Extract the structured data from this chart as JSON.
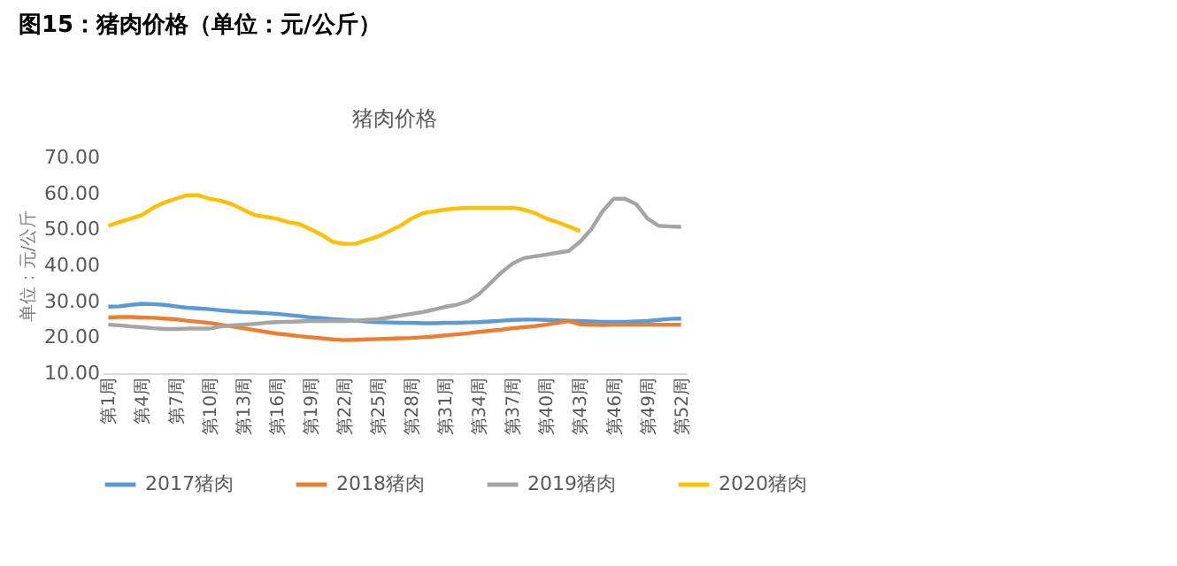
{
  "chart_data": {
    "type": "line",
    "title": "图15：猪肉价格（单位：元/公斤）",
    "subtitle": "猪肉价格",
    "ylabel": "单位：元/公斤",
    "categories": [
      "第1周",
      null,
      null,
      "第4周",
      null,
      null,
      "第7周",
      null,
      null,
      "第10周",
      null,
      null,
      "第13周",
      null,
      null,
      "第16周",
      null,
      null,
      "第19周",
      null,
      null,
      "第22周",
      null,
      null,
      "第25周",
      null,
      null,
      "第28周",
      null,
      null,
      "第31周",
      null,
      null,
      "第34周",
      null,
      null,
      "第37周",
      null,
      null,
      "第40周",
      null,
      null,
      "第43周",
      null,
      null,
      "第46周",
      null,
      null,
      "第49周",
      null,
      null,
      "第52周"
    ],
    "series": [
      {
        "name": "2017猪肉",
        "color": "#5b9bd5",
        "values": [
          28.5,
          28.6,
          29,
          29.3,
          29.2,
          29,
          28.6,
          28.2,
          28,
          27.8,
          27.5,
          27.2,
          27,
          26.9,
          26.7,
          26.5,
          26.2,
          25.9,
          25.5,
          25.3,
          25,
          24.8,
          24.6,
          24.4,
          24.2,
          24.1,
          24,
          24,
          23.9,
          23.9,
          24,
          24,
          24.1,
          24.2,
          24.4,
          24.6,
          24.8,
          24.9,
          24.9,
          24.8,
          24.7,
          24.6,
          24.5,
          24.4,
          24.3,
          24.3,
          24.3,
          24.4,
          24.5,
          24.8,
          25.1,
          25.2
        ]
      },
      {
        "name": "2018猪肉",
        "color": "#ed7d31",
        "values": [
          25.5,
          25.6,
          25.6,
          25.5,
          25.4,
          25.2,
          25,
          24.6,
          24.3,
          24,
          23.5,
          23,
          22.5,
          22,
          21.5,
          21,
          20.7,
          20.3,
          20,
          19.7,
          19.4,
          19.2,
          19.3,
          19.4,
          19.5,
          19.6,
          19.7,
          19.8,
          20,
          20.2,
          20.5,
          20.8,
          21.1,
          21.5,
          21.8,
          22.1,
          22.5,
          22.8,
          23.1,
          23.5,
          24,
          24.5,
          23.6,
          23.5,
          23.4,
          23.5,
          23.5,
          23.5,
          23.5,
          23.5,
          23.5,
          23.5
        ]
      },
      {
        "name": "2019猪肉",
        "color": "#a5a5a5",
        "values": [
          23.5,
          23.3,
          23,
          22.8,
          22.5,
          22.3,
          22.3,
          22.4,
          22.4,
          22.4,
          23,
          23.3,
          23.5,
          23.7,
          24,
          24.2,
          24.3,
          24.4,
          24.5,
          24.5,
          24.5,
          24.5,
          24.6,
          24.8,
          25,
          25.5,
          26,
          26.5,
          27,
          27.7,
          28.5,
          29,
          30,
          32,
          35,
          38,
          40.5,
          42,
          42.5,
          43,
          43.5,
          44,
          46.5,
          50,
          55,
          58.5,
          58.5,
          57,
          53,
          51,
          50.8,
          50.7
        ]
      },
      {
        "name": "2020猪肉",
        "color": "#ffc000",
        "values": [
          51,
          52,
          53,
          54,
          56,
          57.5,
          58.5,
          59.5,
          59.5,
          58.5,
          58,
          57,
          55.5,
          54,
          53.5,
          53,
          52,
          51.5,
          50,
          48.5,
          46.5,
          46,
          46,
          47,
          48,
          49.5,
          51,
          53,
          54.5,
          55,
          55.5,
          55.8,
          56,
          56,
          56,
          56,
          56,
          55.5,
          54.5,
          53,
          52,
          50.8,
          49.5,
          null,
          null,
          null,
          null,
          null,
          null,
          null,
          null,
          null
        ]
      }
    ],
    "ylim": [
      10,
      70
    ],
    "yticks": [
      {
        "value": 10,
        "label": "10.00"
      },
      {
        "value": 20,
        "label": "20.00"
      },
      {
        "value": 30,
        "label": "30.00"
      },
      {
        "value": 40,
        "label": "40.00"
      },
      {
        "value": 50,
        "label": "50.00"
      },
      {
        "value": 60,
        "label": "60.00"
      },
      {
        "value": 70,
        "label": "70.00"
      }
    ],
    "grid": false,
    "legend": "bottom",
    "marker": "none",
    "line_style": "solid"
  }
}
